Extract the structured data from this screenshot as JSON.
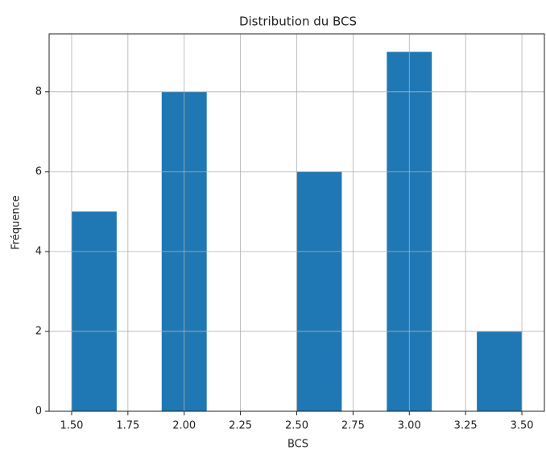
{
  "chart_data": {
    "type": "histogram",
    "title": "Distribution du BCS",
    "x_label": "BCS",
    "y_label": "Fréquence",
    "bins": [
      1.5,
      1.7,
      1.9,
      2.1,
      2.3,
      2.5,
      2.7,
      2.9,
      3.1,
      3.3,
      3.5
    ],
    "values": [
      5,
      0,
      8,
      0,
      0,
      6,
      0,
      9,
      0,
      2
    ],
    "color": "#1f77b4",
    "xlim": [
      1.4,
      3.6
    ],
    "xticks": [
      {
        "value": 1.5,
        "label": "1.50"
      },
      1.75,
      {
        "value": 2,
        "label": "2.00"
      },
      2.25,
      {
        "value": 2.5,
        "label": "2.50"
      },
      2.75,
      {
        "value": 3,
        "label": "3.00"
      },
      3.25,
      {
        "value": 3.5,
        "label": "3.50"
      }
    ],
    "ylim": [
      0,
      9.45
    ],
    "yticks": [
      0,
      2,
      4,
      6,
      8
    ],
    "grid": true
  }
}
